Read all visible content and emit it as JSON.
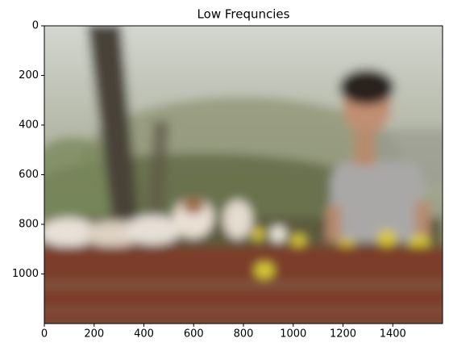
{
  "chart_data": {
    "type": "image",
    "title": "Low Frequncies",
    "xlim": [
      0,
      1600
    ],
    "ylim": [
      1200,
      0
    ],
    "xticks": [
      0,
      200,
      400,
      600,
      800,
      1000,
      1200,
      1400
    ],
    "yticks": [
      0,
      200,
      400,
      600,
      800,
      1000
    ]
  }
}
